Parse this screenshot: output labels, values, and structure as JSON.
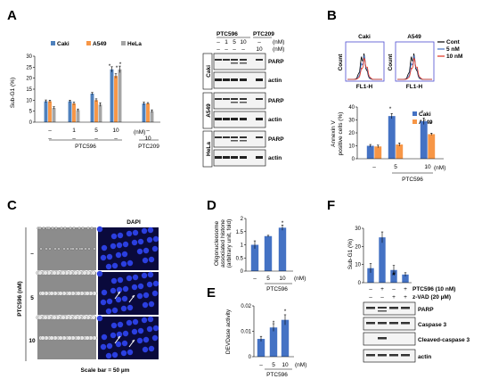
{
  "panel_labels": {
    "a": "A",
    "b": "B",
    "c": "C",
    "d": "D",
    "e": "E",
    "f": "F"
  },
  "colors": {
    "caki": "#4f81bd",
    "a549": "#f79646",
    "hela": "#a5a5a5",
    "blue": "#4472c4",
    "grey": "#a5a5a5",
    "cont": "#000000",
    "n5": "#4472c4",
    "n10": "#e0301e"
  },
  "panel_a": {
    "legend": [
      "Caki",
      "A549",
      "HeLa"
    ],
    "ylabel": "Sub-G1 (%)",
    "yticks": [
      "0",
      "5",
      "10",
      "15",
      "20",
      "25",
      "30"
    ],
    "row1": [
      "–",
      "1",
      "5",
      "10",
      "–"
    ],
    "row2": [
      "–",
      "–",
      "–",
      "–",
      "10"
    ],
    "unit": "(nM)",
    "group1": "PTC596",
    "group2": "PTC209",
    "blot": {
      "header_ptc596": "PTC596",
      "header_ptc209": "PTC209",
      "row1": [
        "–",
        "1",
        "5",
        "10",
        "–"
      ],
      "row2": [
        "–",
        "–",
        "–",
        "–",
        "10"
      ],
      "unit": "(nM)",
      "cells": [
        "Caki",
        "A549",
        "HeLa"
      ],
      "bands": [
        "PARP",
        "actin"
      ]
    }
  },
  "panel_b": {
    "hist_titles": [
      "Caki",
      "A549"
    ],
    "hist_ylabel": "Count",
    "hist_xlabel": "FL1-H",
    "hist_legend": [
      "Cont",
      "5 nM",
      "10 nM"
    ],
    "legend": [
      "Caki",
      "A549"
    ],
    "ylabel1": "Annexin V",
    "ylabel2": "positive cells (%)",
    "yticks": [
      "0",
      "10",
      "20",
      "30",
      "40"
    ],
    "xlabels": [
      "–",
      "5",
      "10"
    ],
    "unit": "(nM)",
    "group": "PTC596"
  },
  "panel_c": {
    "col": "DAPI",
    "ylabel": "PTC596 (nM)",
    "rows": [
      "–",
      "5",
      "10"
    ],
    "scale": "Scale bar = 50 µm"
  },
  "panel_d": {
    "ylabel1": "Oligonucleosome",
    "ylabel2": "associated histone",
    "ylabel3": "(arbitrary unit, fold)",
    "yticks": [
      "0",
      "0.5",
      "1",
      "1.5",
      "2"
    ],
    "xlabels": [
      "–",
      "5",
      "10"
    ],
    "unit": "(nM)",
    "group": "PTC596"
  },
  "panel_e": {
    "ylabel": "DEVDase activity",
    "yticks": [
      "0",
      "0.01",
      "0.02"
    ],
    "xlabels": [
      "–",
      "5",
      "10"
    ],
    "unit": "(nM)",
    "group": "PTC596"
  },
  "panel_f": {
    "ylabel": "Sub-G1 (%)",
    "yticks": [
      "0",
      "10",
      "20",
      "30"
    ],
    "row1": [
      "–",
      "+",
      "–",
      "+"
    ],
    "row2": [
      "–",
      "–",
      "+",
      "+"
    ],
    "row1_label": "PTC596 (10 nM)",
    "row2_label": "z-VAD (20 µM)",
    "hash": "#",
    "bands": [
      "PARP",
      "Caspase 3",
      "Cleaved-caspase 3",
      "actin"
    ]
  },
  "chart_data": [
    {
      "type": "bar",
      "name": "A",
      "categories": [
        "–",
        "1",
        "5",
        "10",
        "PTC209 10"
      ],
      "series": [
        {
          "name": "Caki",
          "values": [
            9.5,
            9.5,
            13,
            24,
            8.5
          ],
          "errors": [
            0.6,
            0.5,
            0.5,
            1.2,
            0.6
          ]
        },
        {
          "name": "A549",
          "values": [
            9.5,
            8.5,
            10,
            21,
            8.5
          ],
          "errors": [
            0.5,
            0.6,
            0.6,
            1,
            0.4
          ]
        },
        {
          "name": "HeLa",
          "values": [
            6.5,
            5.5,
            8,
            24,
            5
          ],
          "errors": [
            0.5,
            0.5,
            0.8,
            1.5,
            0.6
          ]
        }
      ],
      "ylabel": "Sub-G1 (%)",
      "ylim": [
        0,
        30
      ]
    },
    {
      "type": "bar",
      "name": "B",
      "categories": [
        "–",
        "5",
        "10"
      ],
      "series": [
        {
          "name": "Caki",
          "values": [
            10,
            33,
            29
          ],
          "errors": [
            1,
            2,
            2.5
          ]
        },
        {
          "name": "A549",
          "values": [
            9.5,
            11,
            19
          ],
          "errors": [
            1,
            1.2,
            0.8
          ]
        }
      ],
      "ylabel": "Annexin V positive cells (%)",
      "ylim": [
        0,
        40
      ]
    },
    {
      "type": "bar",
      "name": "D",
      "categories": [
        "–",
        "5",
        "10"
      ],
      "series": [
        {
          "name": "",
          "values": [
            1.0,
            1.33,
            1.65
          ],
          "errors": [
            0.15,
            0.03,
            0.1
          ]
        }
      ],
      "ylabel": "Oligonucleosome associated histone (arbitrary unit, fold)",
      "ylim": [
        0,
        2
      ]
    },
    {
      "type": "bar",
      "name": "E",
      "categories": [
        "–",
        "5",
        "10"
      ],
      "series": [
        {
          "name": "",
          "values": [
            0.007,
            0.0115,
            0.0145
          ],
          "errors": [
            0.001,
            0.0015,
            0.002
          ]
        }
      ],
      "ylabel": "DEVDase activity",
      "ylim": [
        0,
        0.02
      ]
    },
    {
      "type": "bar",
      "name": "F",
      "categories": [
        "– –",
        "+ –",
        "– +",
        "+ +"
      ],
      "series": [
        {
          "name": "",
          "values": [
            8,
            25,
            7,
            4.5
          ],
          "errors": [
            2.5,
            3,
            2.5,
            1
          ]
        }
      ],
      "ylabel": "Sub-G1 (%)",
      "ylim": [
        0,
        30
      ]
    }
  ]
}
